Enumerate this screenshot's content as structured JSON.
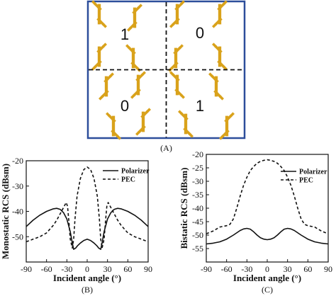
{
  "panel_labels": [
    "(A)",
    "(B)",
    "(C)"
  ],
  "panel_a": {
    "cell_digits": [
      "1",
      "0",
      "0",
      "1"
    ],
    "colors": {
      "element": "#d9a21b",
      "border": "#2d4e9b",
      "divider": "#111111"
    }
  },
  "chart_data": [
    {
      "type": "line",
      "xlabel": "Incident angle (°)",
      "ylabel": "Monostatic RCS (dBsm)",
      "xlim": [
        -90,
        90
      ],
      "ylim": [
        -60,
        -20
      ],
      "x_ticks": [
        -90,
        -60,
        -30,
        0,
        30,
        60,
        90
      ],
      "y_ticks": [
        -60,
        -50,
        -40,
        -30,
        -20
      ],
      "legend_position": "top-right",
      "series": [
        {
          "name": "Polarizer",
          "style": "solid",
          "x": [
            -90,
            -80,
            -70,
            -60,
            -50,
            -45,
            -40,
            -35,
            -30,
            -25,
            -22,
            -20,
            -17,
            -14,
            -10,
            -5,
            0,
            5,
            10,
            14,
            17,
            20,
            22,
            25,
            30,
            35,
            40,
            45,
            50,
            60,
            70,
            80,
            90
          ],
          "y": [
            -46,
            -43.5,
            -41.5,
            -40,
            -39,
            -38.8,
            -39.2,
            -40.5,
            -43,
            -48,
            -52.5,
            -55,
            -54.5,
            -53.5,
            -52.5,
            -51.5,
            -51,
            -51.5,
            -52.5,
            -53.5,
            -54.5,
            -55,
            -52.5,
            -48,
            -43,
            -40.5,
            -39.2,
            -38.8,
            -39,
            -40,
            -41.5,
            -43.5,
            -46
          ]
        },
        {
          "name": "PEC",
          "style": "dashed",
          "x": [
            -90,
            -80,
            -70,
            -60,
            -50,
            -45,
            -40,
            -35,
            -31,
            -29,
            -27,
            -25,
            -22,
            -20,
            -18,
            -15,
            -10,
            -5,
            0,
            5,
            10,
            15,
            18,
            20,
            22,
            25,
            27,
            29,
            31,
            35,
            40,
            45,
            50,
            60,
            70,
            80,
            90
          ],
          "y": [
            -52,
            -51,
            -50,
            -48.5,
            -45.5,
            -43.5,
            -41,
            -38.5,
            -36.5,
            -38,
            -44,
            -51,
            -54.5,
            -51,
            -43,
            -34,
            -27,
            -23.5,
            -22.5,
            -23.5,
            -27,
            -34,
            -43,
            -51,
            -54.5,
            -51,
            -44,
            -38,
            -36.5,
            -38.5,
            -41,
            -43.5,
            -45.5,
            -48.5,
            -50,
            -51,
            -52
          ]
        }
      ]
    },
    {
      "type": "line",
      "xlabel": "Incident angle (°)",
      "ylabel": "Bistatic RCS (dBsm)",
      "xlim": [
        -90,
        90
      ],
      "ylim": [
        -60,
        -20
      ],
      "x_ticks": [
        -90,
        -60,
        -30,
        0,
        30,
        60,
        90
      ],
      "y_ticks": [
        -60,
        -55,
        -50,
        -45,
        -40,
        -35,
        -30,
        -25,
        -20
      ],
      "legend_position": "top-right",
      "series": [
        {
          "name": "Polarizer",
          "style": "solid",
          "x": [
            -90,
            -80,
            -70,
            -60,
            -50,
            -40,
            -35,
            -30,
            -25,
            -20,
            -15,
            -10,
            -5,
            0,
            5,
            10,
            15,
            20,
            25,
            30,
            35,
            40,
            50,
            60,
            70,
            80,
            90
          ],
          "y": [
            -53.3,
            -53,
            -52.5,
            -51.5,
            -50,
            -48.3,
            -47.7,
            -47.5,
            -47.8,
            -48.8,
            -50,
            -51,
            -51.5,
            -51.7,
            -51.5,
            -51,
            -50,
            -48.8,
            -47.8,
            -47.5,
            -47.7,
            -48.3,
            -50,
            -51.5,
            -52.5,
            -53,
            -53.3
          ]
        },
        {
          "name": "PEC",
          "style": "dashed",
          "x": [
            -90,
            -80,
            -70,
            -60,
            -55,
            -50,
            -45,
            -40,
            -35,
            -30,
            -25,
            -20,
            -15,
            -10,
            -5,
            0,
            5,
            10,
            15,
            20,
            25,
            30,
            35,
            40,
            45,
            50,
            55,
            60,
            70,
            80,
            90
          ],
          "y": [
            -49.5,
            -48.5,
            -47,
            -46.5,
            -46,
            -44,
            -40,
            -35.5,
            -31.5,
            -28.5,
            -26,
            -24.5,
            -23.3,
            -22.6,
            -22.2,
            -22,
            -22.2,
            -22.6,
            -23.3,
            -24.5,
            -26,
            -28.5,
            -31.5,
            -35.5,
            -40,
            -44,
            -46,
            -46.5,
            -47,
            -48.5,
            -49.5
          ]
        }
      ]
    }
  ]
}
